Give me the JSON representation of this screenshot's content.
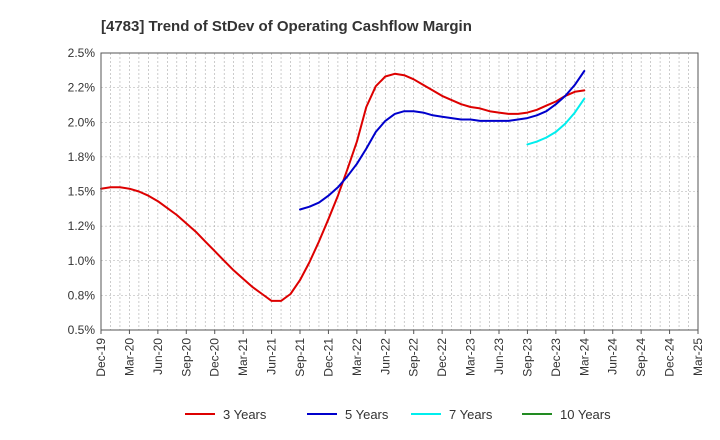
{
  "chart_data": {
    "type": "line",
    "title": "[4783]  Trend of StDev of Operating Cashflow Margin",
    "xlabel": "",
    "ylabel": "",
    "ylim": [
      0.5,
      2.5
    ],
    "grid": true,
    "legend_position": "bottom",
    "y_ticks": [
      "0.5%",
      "0.8%",
      "1.0%",
      "1.2%",
      "1.5%",
      "1.8%",
      "2.0%",
      "2.2%",
      "2.5%"
    ],
    "y_tick_values": [
      0.5,
      0.75,
      1.0,
      1.25,
      1.5,
      1.75,
      2.0,
      2.25,
      2.5
    ],
    "x_ticks": [
      "Dec-19",
      "Mar-20",
      "Jun-20",
      "Sep-20",
      "Dec-20",
      "Mar-21",
      "Jun-21",
      "Sep-21",
      "Dec-21",
      "Mar-22",
      "Jun-22",
      "Sep-22",
      "Dec-22",
      "Mar-23",
      "Jun-23",
      "Sep-23",
      "Dec-23",
      "Mar-24",
      "Jun-24",
      "Sep-24",
      "Dec-24",
      "Mar-25"
    ],
    "series": [
      {
        "name": "3 Years",
        "color": "#dd0000",
        "x": [
          "Dec-19",
          "Jan-20",
          "Feb-20",
          "Mar-20",
          "Apr-20",
          "May-20",
          "Jun-20",
          "Jul-20",
          "Aug-20",
          "Sep-20",
          "Oct-20",
          "Nov-20",
          "Dec-20",
          "Jan-21",
          "Feb-21",
          "Mar-21",
          "Apr-21",
          "May-21",
          "Jun-21",
          "Jul-21",
          "Aug-21",
          "Sep-21",
          "Oct-21",
          "Nov-21",
          "Dec-21",
          "Jan-22",
          "Feb-22",
          "Mar-22",
          "Apr-22",
          "May-22",
          "Jun-22",
          "Jul-22",
          "Aug-22",
          "Sep-22",
          "Oct-22",
          "Nov-22",
          "Dec-22",
          "Jan-23",
          "Feb-23",
          "Mar-23",
          "Apr-23",
          "May-23",
          "Jun-23",
          "Jul-23",
          "Aug-23",
          "Sep-23",
          "Oct-23",
          "Nov-23",
          "Dec-23",
          "Jan-24",
          "Feb-24",
          "Mar-24"
        ],
        "values": [
          1.52,
          1.53,
          1.53,
          1.52,
          1.5,
          1.47,
          1.43,
          1.38,
          1.33,
          1.27,
          1.21,
          1.14,
          1.07,
          1.0,
          0.93,
          0.87,
          0.81,
          0.76,
          0.71,
          0.71,
          0.76,
          0.86,
          0.99,
          1.14,
          1.3,
          1.47,
          1.66,
          1.86,
          2.11,
          2.26,
          2.33,
          2.35,
          2.34,
          2.31,
          2.27,
          2.23,
          2.19,
          2.16,
          2.13,
          2.11,
          2.1,
          2.08,
          2.07,
          2.06,
          2.06,
          2.07,
          2.09,
          2.12,
          2.15,
          2.19,
          2.22,
          2.23
        ]
      },
      {
        "name": "5 Years",
        "color": "#0000cc",
        "x": [
          "Sep-21",
          "Oct-21",
          "Nov-21",
          "Dec-21",
          "Jan-22",
          "Feb-22",
          "Mar-22",
          "Apr-22",
          "May-22",
          "Jun-22",
          "Jul-22",
          "Aug-22",
          "Sep-22",
          "Oct-22",
          "Nov-22",
          "Dec-22",
          "Jan-23",
          "Feb-23",
          "Mar-23",
          "Apr-23",
          "May-23",
          "Jun-23",
          "Jul-23",
          "Aug-23",
          "Sep-23",
          "Oct-23",
          "Nov-23",
          "Dec-23",
          "Jan-24",
          "Feb-24",
          "Mar-24"
        ],
        "values": [
          1.37,
          1.39,
          1.42,
          1.47,
          1.53,
          1.61,
          1.7,
          1.81,
          1.93,
          2.01,
          2.06,
          2.08,
          2.08,
          2.07,
          2.05,
          2.04,
          2.03,
          2.02,
          2.02,
          2.01,
          2.01,
          2.01,
          2.01,
          2.02,
          2.03,
          2.05,
          2.08,
          2.13,
          2.19,
          2.27,
          2.37
        ]
      },
      {
        "name": "7 Years",
        "color": "#00eeee",
        "x": [
          "Sep-23",
          "Oct-23",
          "Nov-23",
          "Dec-23",
          "Jan-24",
          "Feb-24",
          "Mar-24"
        ],
        "values": [
          1.84,
          1.86,
          1.89,
          1.93,
          1.99,
          2.07,
          2.17
        ]
      },
      {
        "name": "10 Years",
        "color": "#228b22",
        "x": [],
        "values": []
      }
    ]
  }
}
